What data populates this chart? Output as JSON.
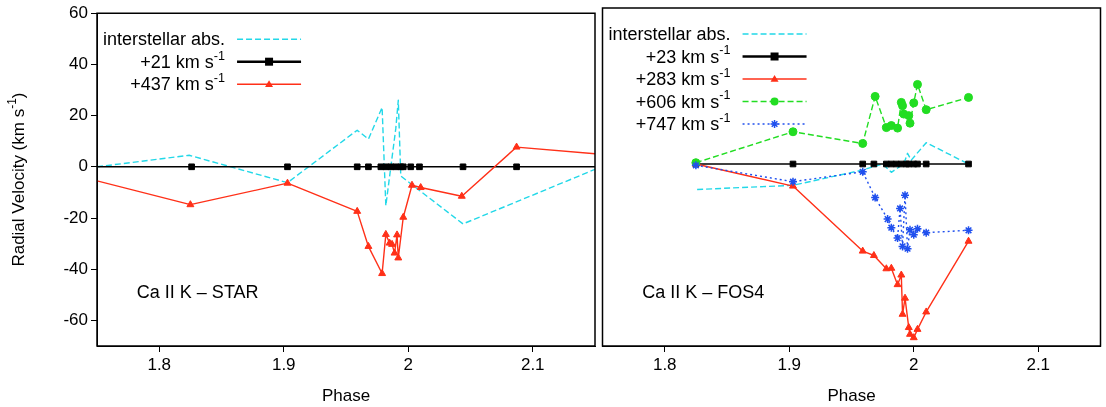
{
  "chart_data": [
    {
      "type": "line",
      "xlabel": "Phase",
      "ylabel": "Radial Velocity (km s$^{-1}$)",
      "xlim": [
        1.75,
        2.15
      ],
      "xticks": [
        1.8,
        1.9,
        2,
        2.1
      ],
      "ylim": [
        -70,
        60
      ],
      "yticks": [
        -60,
        -40,
        -20,
        0,
        20,
        40,
        60
      ],
      "grid": false,
      "legend": "top left",
      "annotations": [
        "Ca II K – STAR"
      ],
      "series": [
        {
          "name": "interstellar abs.",
          "color": "#22d8e8",
          "marker": "none",
          "line_style": "dashed",
          "x": [
            1.75,
            1.824,
            1.903,
            1.959,
            1.968,
            1.979,
            1.982,
            1.99,
            1.992,
            1.994,
            2.003,
            2.044,
            2.15
          ],
          "values": [
            0,
            4.5,
            -6.2,
            14.3,
            10.8,
            23.2,
            -15.2,
            15,
            26,
            -3.6,
            -7,
            -22.3,
            -1
          ]
        },
        {
          "name": "+21 km s$^{-1}$",
          "color": "#000000",
          "marker": "square",
          "line_style": "solid",
          "x": [
            1.75,
            1.826,
            1.903,
            1.959,
            1.968,
            1.978,
            1.982,
            1.986,
            1.99,
            1.994,
            1.996,
            2.002,
            2.009,
            2.044,
            2.087,
            2.15
          ],
          "values": [
            0,
            0,
            0,
            0,
            0,
            0,
            0,
            0,
            0,
            0,
            0,
            0,
            0,
            0,
            0,
            0
          ]
        },
        {
          "name": "+437 km s$^{-1}$",
          "color": "#ff3018",
          "marker": "triangle",
          "line_style": "solid",
          "x": [
            1.75,
            1.825,
            1.903,
            1.959,
            1.968,
            1.979,
            1.982,
            1.985,
            1.987,
            1.989,
            1.991,
            1.992,
            1.996,
            2.003,
            2.01,
            2.043,
            2.087,
            2.15
          ],
          "values": [
            -5.5,
            -14.8,
            -6.4,
            -17.4,
            -31.1,
            -41.7,
            -26.4,
            -29.8,
            -30.3,
            -33.7,
            -26.6,
            -35.6,
            -19.7,
            -7.2,
            -8.1,
            -11.5,
            7.7,
            5.1
          ]
        }
      ]
    },
    {
      "type": "line",
      "xlabel": "Phase",
      "xlim": [
        1.75,
        2.15
      ],
      "xticks": [
        1.8,
        1.9,
        2,
        2.1
      ],
      "ylim": [
        -70,
        60
      ],
      "yticks": [
        -60,
        -40,
        -20,
        0,
        20,
        40,
        60
      ],
      "tick_labels": "x",
      "grid": false,
      "legend": "top left",
      "annotations": [
        "Ca II K – FOS4"
      ],
      "series": [
        {
          "name": "interstellar abs.",
          "color": "#22d8e8",
          "marker": "none",
          "line_style": "dashed",
          "x": [
            1.826,
            1.903,
            1.959,
            1.975,
            1.982,
            1.992,
            1.995,
            1.998,
            2.01,
            2.044
          ],
          "values": [
            -9.8,
            -8.2,
            -2.3,
            0,
            -3.2,
            0,
            4.1,
            1.5,
            8.2,
            0
          ]
        },
        {
          "name": "+23 km s$^{-1}$",
          "color": "#000000",
          "marker": "square",
          "line_style": "solid",
          "x": [
            1.825,
            1.903,
            1.959,
            1.968,
            1.978,
            1.982,
            1.986,
            1.99,
            1.994,
            1.996,
            2.0,
            2.003,
            2.01,
            2.044
          ],
          "values": [
            0,
            0,
            0,
            0,
            0,
            0,
            0,
            0,
            0,
            0,
            0,
            0,
            0,
            0
          ]
        },
        {
          "name": "+283 km s$^{-1}$",
          "color": "#ff3018",
          "marker": "triangle",
          "line_style": "solid",
          "x": [
            1.825,
            1.903,
            1.959,
            1.968,
            1.978,
            1.982,
            1.987,
            1.99,
            1.991,
            1.993,
            1.996,
            1.997,
            2.0,
            2.003,
            2.01,
            2.044
          ],
          "values": [
            0,
            -8.5,
            -33.5,
            -35.2,
            -40.3,
            -40.1,
            -46.4,
            -42.7,
            -57.8,
            -51.6,
            -62.9,
            -65.5,
            -66.8,
            -63.6,
            -56.9,
            -29.7
          ]
        },
        {
          "name": "+606 km s$^{-1}$",
          "color": "#22dd22",
          "marker": "circle",
          "line_style": "dashed",
          "x": [
            1.825,
            1.903,
            1.959,
            1.969,
            1.978,
            1.982,
            1.987,
            1.99,
            1.991,
            1.992,
            1.996,
            1.997,
            2.0,
            2.003,
            2.01,
            2.044
          ],
          "values": [
            0.5,
            12.4,
            7.9,
            26,
            14,
            14.8,
            13.8,
            23.7,
            22.4,
            19.2,
            18.6,
            15.7,
            23.5,
            30.6,
            20.9,
            25.6
          ]
        },
        {
          "name": "+747 km s$^{-1}$",
          "color": "#2050ee",
          "marker": "cross",
          "line_style": "dotted",
          "x": [
            1.825,
            1.903,
            1.959,
            1.969,
            1.979,
            1.982,
            1.987,
            1.989,
            1.991,
            1.993,
            1.995,
            1.997,
            2.0,
            2.003,
            2.01,
            2.044
          ],
          "values": [
            -0.5,
            -6.8,
            -3.0,
            -12.9,
            -21.2,
            -24.5,
            -28.5,
            -17.1,
            -31.7,
            -12,
            -32.6,
            -25.3,
            -27.2,
            -24.9,
            -26.4,
            -25.5
          ]
        }
      ]
    }
  ]
}
